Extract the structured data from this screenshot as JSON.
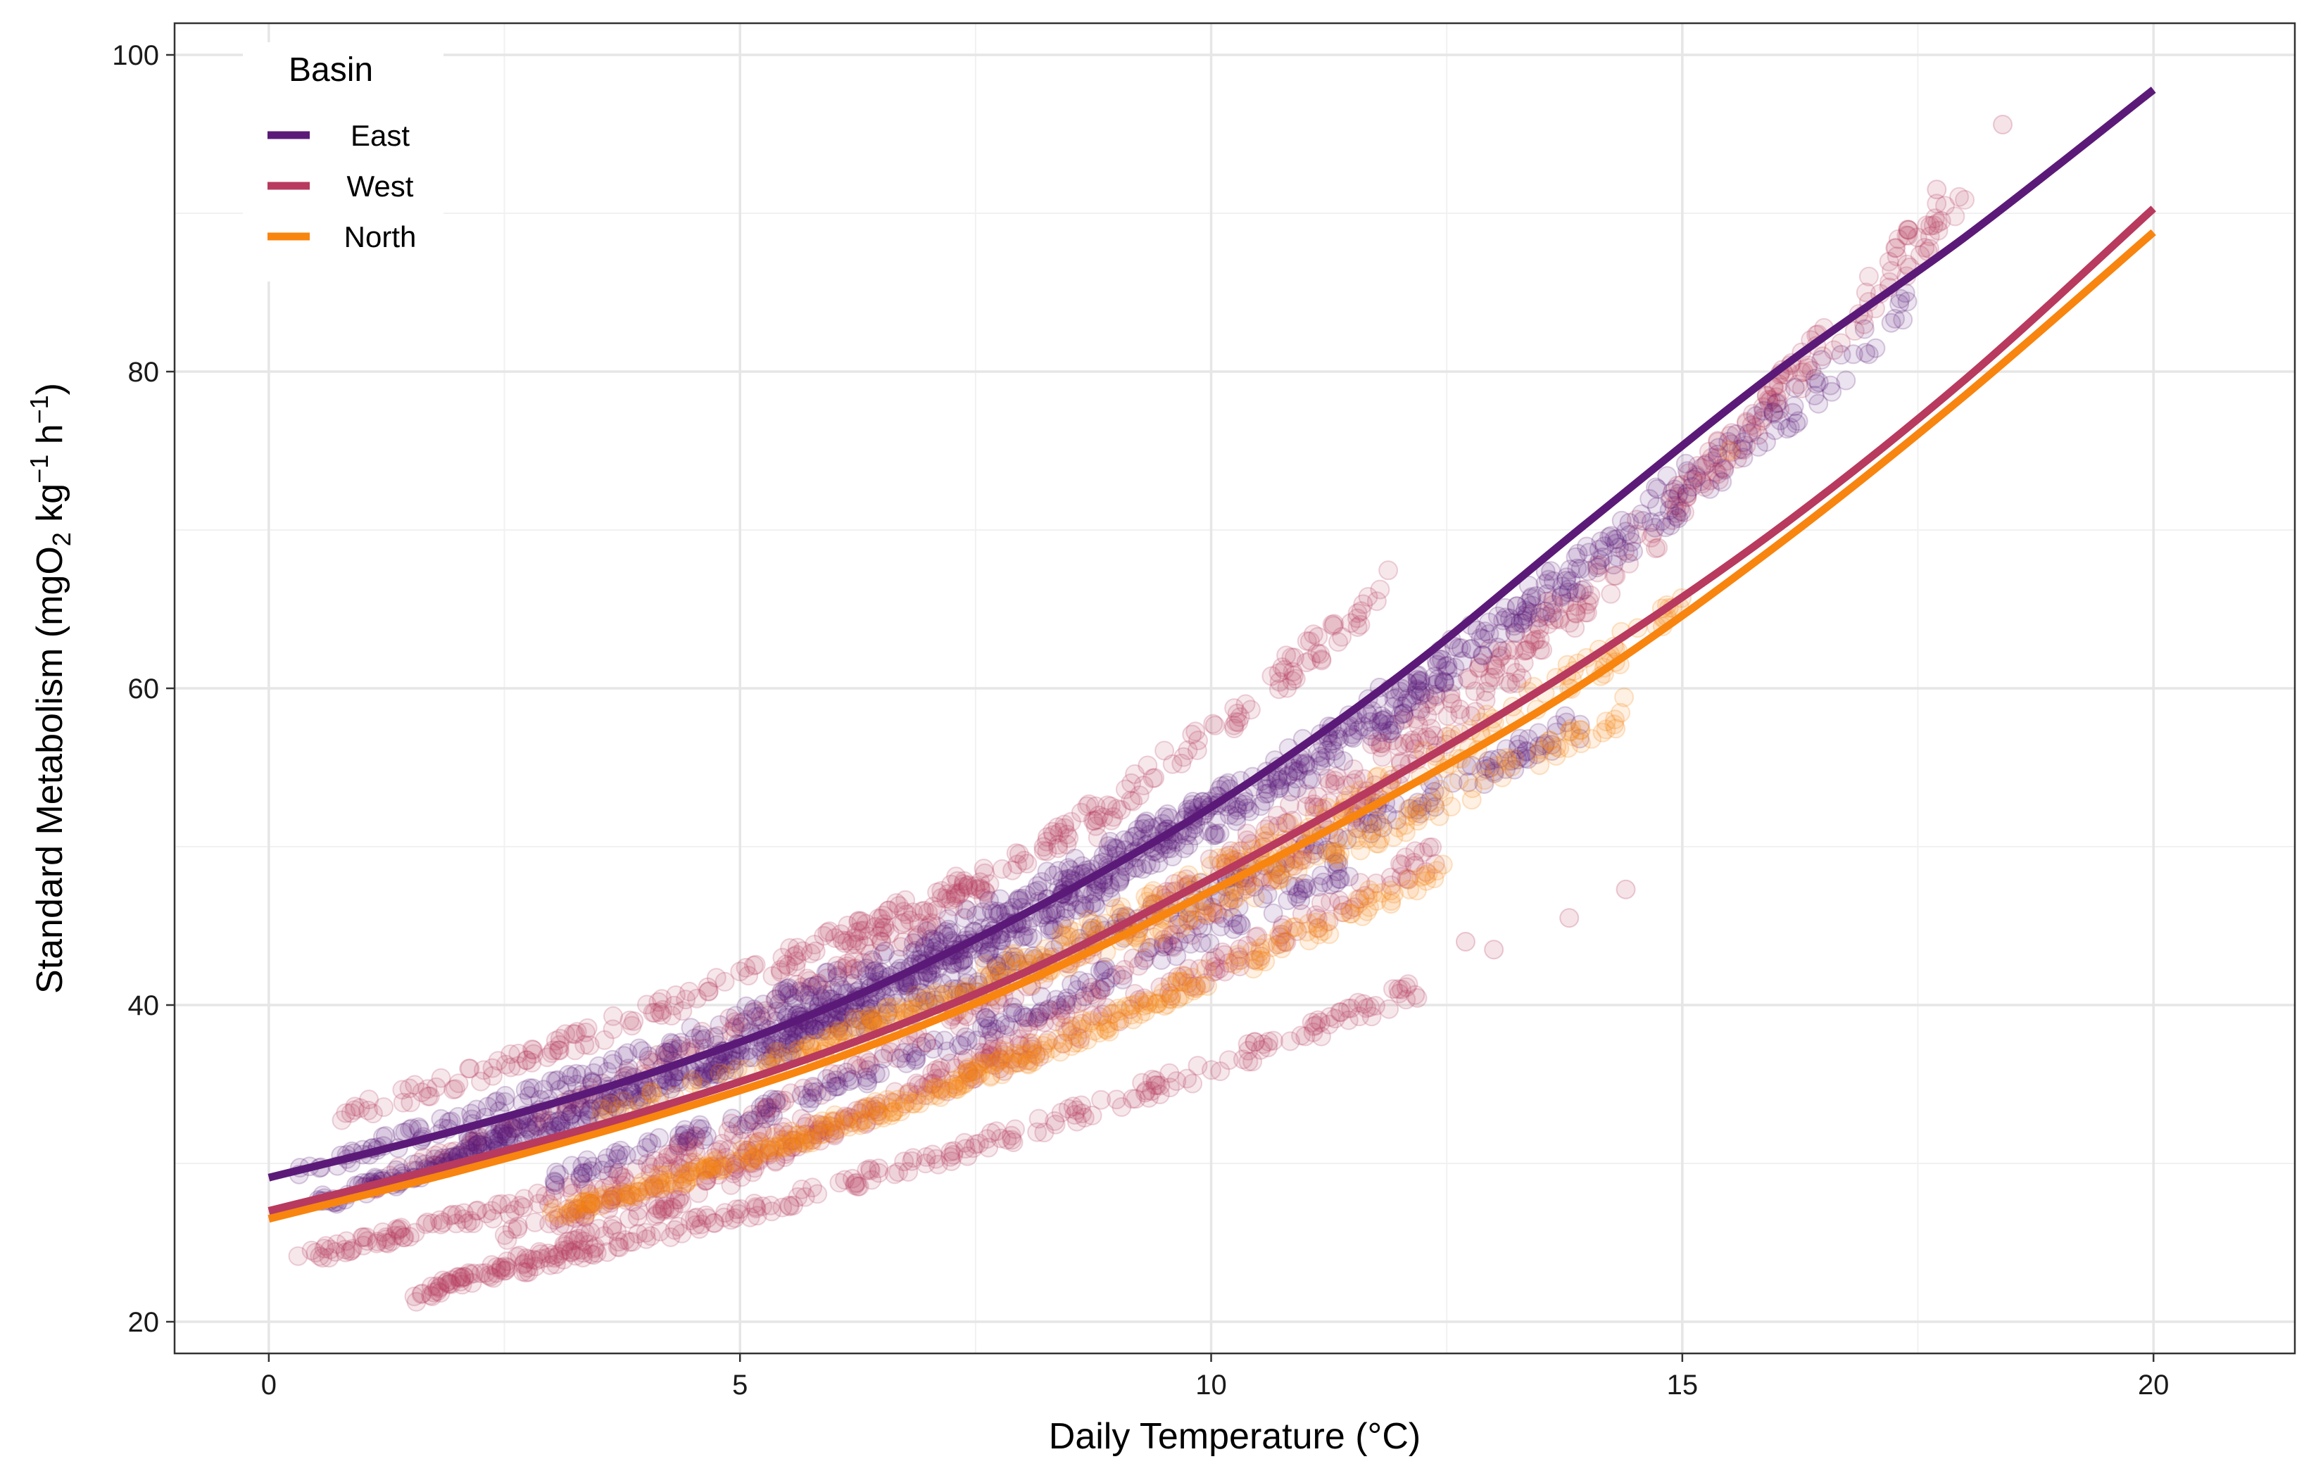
{
  "chart_data": {
    "type": "scatter",
    "xlabel": "Daily Temperature (°C)",
    "ylabel": {
      "main": "Standard Metabolism (mgO",
      "sub1": "2",
      "mid1": " kg",
      "sup1": "−1",
      "mid2": " h",
      "sup2": "−1",
      "end": ")"
    },
    "xlim": [
      -1,
      21.5
    ],
    "ylim": [
      18,
      102
    ],
    "x_ticks": [
      0,
      5,
      10,
      15,
      20
    ],
    "x_tick_labels": [
      "0",
      "5",
      "10",
      "15",
      "20"
    ],
    "y_ticks": [
      20,
      40,
      60,
      80,
      100
    ],
    "y_tick_labels": [
      "20",
      "40",
      "60",
      "80",
      "100"
    ],
    "grid": true,
    "legend": {
      "title": "Basin",
      "placement": "top-left"
    },
    "series": [
      {
        "name": "East",
        "color": "#5B1A78",
        "fit_line": {
          "x": [
            0,
            2,
            4,
            6,
            8,
            10,
            12,
            14,
            16,
            18,
            20
          ],
          "y": [
            29.1,
            32.1,
            35.6,
            40.0,
            45.7,
            52.5,
            60.8,
            70.5,
            80.0,
            88.5,
            97.8
          ]
        },
        "point_groups": [
          {
            "x_range": [
              0.3,
              10.2
            ],
            "y_start": 29.5,
            "y_end": 53.5
          },
          {
            "x_range": [
              0.5,
              9.0
            ],
            "y_start": 27.5,
            "y_end": 47.5
          },
          {
            "x_range": [
              1.0,
              12.5
            ],
            "y_start": 28.5,
            "y_end": 60.5
          },
          {
            "x_range": [
              2.0,
              15.2
            ],
            "y_start": 31.0,
            "y_end": 74.0
          },
          {
            "x_range": [
              3.0,
              11.5
            ],
            "y_start": 29.0,
            "y_end": 49.0
          },
          {
            "x_range": [
              4.5,
              14.0
            ],
            "y_start": 35.5,
            "y_end": 58.0
          },
          {
            "x_range": [
              5.5,
              17.5
            ],
            "y_start": 38.5,
            "y_end": 85.0
          }
        ]
      },
      {
        "name": "West",
        "color": "#B83A5E",
        "fit_line": {
          "x": [
            0,
            2,
            4,
            6,
            8,
            10,
            12,
            14,
            16,
            18,
            20
          ],
          "y": [
            27.0,
            30.0,
            33.3,
            37.2,
            42.0,
            48.0,
            54.6,
            61.8,
            70.0,
            79.5,
            90.3
          ]
        },
        "point_groups": [
          {
            "x_range": [
              0.7,
              9.0
            ],
            "y_start": 32.8,
            "y_end": 52.0
          },
          {
            "x_range": [
              1.0,
              12.0
            ],
            "y_start": 28.5,
            "y_end": 67.0
          },
          {
            "x_range": [
              1.5,
              16.5
            ],
            "y_start": 21.5,
            "y_end": 82.0
          },
          {
            "x_range": [
              1.6,
              12.3
            ],
            "y_start": 22.0,
            "y_end": 41.3
          },
          {
            "x_range": [
              2.5,
              12.5
            ],
            "y_start": 25.5,
            "y_end": 50.0
          },
          {
            "x_range": [
              4.0,
              18.0
            ],
            "y_start": 30.0,
            "y_end": 92.0
          },
          {
            "x_range": [
              0.3,
              6.0
            ],
            "y_start": 24.0,
            "y_end": 33.0
          }
        ]
      },
      {
        "name": "North",
        "color": "#F8850F",
        "fit_line": {
          "x": [
            0,
            2,
            4,
            6,
            8,
            10,
            12,
            14,
            16,
            18,
            20
          ],
          "y": [
            26.5,
            29.5,
            32.8,
            36.6,
            41.4,
            47.2,
            53.5,
            60.5,
            69.0,
            78.5,
            88.8
          ]
        },
        "point_groups": [
          {
            "x_range": [
              3.0,
              10.0
            ],
            "y_start": 26.8,
            "y_end": 42.0
          },
          {
            "x_range": [
              3.2,
              12.5
            ],
            "y_start": 27.0,
            "y_end": 49.0
          },
          {
            "x_range": [
              3.5,
              14.4
            ],
            "y_start": 33.0,
            "y_end": 58.5
          },
          {
            "x_range": [
              6.0,
              15.0
            ],
            "y_start": 38.0,
            "y_end": 65.0
          }
        ]
      }
    ],
    "outliers": [
      {
        "x": 18.4,
        "y": 95.6,
        "series": "West"
      },
      {
        "x": 17.7,
        "y": 91.5,
        "series": "West"
      },
      {
        "x": 16.0,
        "y": 78.0,
        "series": "East"
      },
      {
        "x": 15.5,
        "y": 75.0,
        "series": "North"
      },
      {
        "x": 14.4,
        "y": 47.3,
        "series": "West"
      },
      {
        "x": 13.8,
        "y": 45.5,
        "series": "West"
      },
      {
        "x": 12.7,
        "y": 44.0,
        "series": "West"
      },
      {
        "x": 13.0,
        "y": 43.5,
        "series": "West"
      }
    ]
  }
}
